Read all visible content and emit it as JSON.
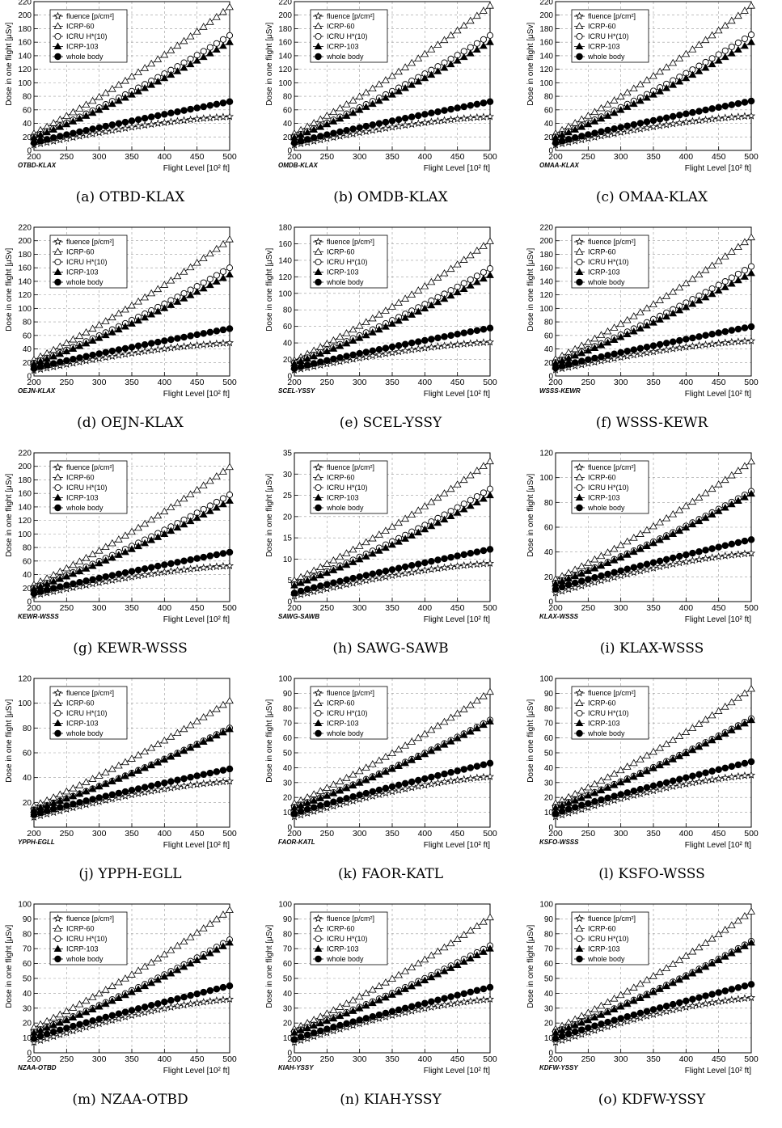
{
  "figure": {
    "ylabel": "Dose in one flight [μSv]",
    "xlabel": "Flight Level [10² ft]",
    "legend": [
      "fluence [p/cm²]",
      "ICRP-60",
      "ICRU H*(10)",
      "ICRP-103",
      "whole body"
    ],
    "colors": {
      "line": "#000000",
      "grid": "#9a9a9a"
    }
  },
  "chart_data": [
    {
      "type": "line",
      "caption": "(a) OTBD-KLAX",
      "route": "OTBD-KLAX",
      "xlim": [
        200,
        500
      ],
      "ylim": [
        0,
        220
      ],
      "yticks": [
        0,
        20,
        40,
        60,
        80,
        100,
        120,
        140,
        160,
        180,
        200,
        220
      ],
      "x": [
        200,
        500
      ],
      "series": [
        {
          "name": "fluence [p/cm²]",
          "values": [
            8,
            50
          ]
        },
        {
          "name": "ICRP-60",
          "values": [
            25,
            212
          ]
        },
        {
          "name": "ICRU H*(10)",
          "values": [
            20,
            170
          ]
        },
        {
          "name": "ICRP-103",
          "values": [
            19,
            160
          ]
        },
        {
          "name": "whole body",
          "values": [
            11,
            72
          ]
        }
      ]
    },
    {
      "type": "line",
      "caption": "(b) OMDB-KLAX",
      "route": "OMDB-KLAX",
      "xlim": [
        200,
        500
      ],
      "ylim": [
        0,
        220
      ],
      "yticks": [
        0,
        20,
        40,
        60,
        80,
        100,
        120,
        140,
        160,
        180,
        200,
        220
      ],
      "x": [
        200,
        500
      ],
      "series": [
        {
          "name": "fluence [p/cm²]",
          "values": [
            8,
            50
          ]
        },
        {
          "name": "ICRP-60",
          "values": [
            25,
            214
          ]
        },
        {
          "name": "ICRU H*(10)",
          "values": [
            20,
            170
          ]
        },
        {
          "name": "ICRP-103",
          "values": [
            19,
            160
          ]
        },
        {
          "name": "whole body",
          "values": [
            11,
            72
          ]
        }
      ]
    },
    {
      "type": "line",
      "caption": "(c) OMAA-KLAX",
      "route": "OMAA-KLAX",
      "xlim": [
        200,
        500
      ],
      "ylim": [
        0,
        220
      ],
      "yticks": [
        0,
        20,
        40,
        60,
        80,
        100,
        120,
        140,
        160,
        180,
        200,
        220
      ],
      "x": [
        200,
        500
      ],
      "series": [
        {
          "name": "fluence [p/cm²]",
          "values": [
            8,
            51
          ]
        },
        {
          "name": "ICRP-60",
          "values": [
            25,
            214
          ]
        },
        {
          "name": "ICRU H*(10)",
          "values": [
            20,
            171
          ]
        },
        {
          "name": "ICRP-103",
          "values": [
            19,
            160
          ]
        },
        {
          "name": "whole body",
          "values": [
            11,
            73
          ]
        }
      ]
    },
    {
      "type": "line",
      "caption": "(d) OEJN-KLAX",
      "route": "OEJN-KLAX",
      "xlim": [
        200,
        500
      ],
      "ylim": [
        0,
        220
      ],
      "yticks": [
        0,
        20,
        40,
        60,
        80,
        100,
        120,
        140,
        160,
        180,
        200,
        220
      ],
      "x": [
        200,
        500
      ],
      "series": [
        {
          "name": "fluence [p/cm²]",
          "values": [
            8,
            49
          ]
        },
        {
          "name": "ICRP-60",
          "values": [
            24,
            202
          ]
        },
        {
          "name": "ICRU H*(10)",
          "values": [
            19,
            160
          ]
        },
        {
          "name": "ICRP-103",
          "values": [
            18,
            150
          ]
        },
        {
          "name": "whole body",
          "values": [
            11,
            70
          ]
        }
      ]
    },
    {
      "type": "line",
      "caption": "(e) SCEL-YSSY",
      "route": "SCEL-YSSY",
      "xlim": [
        200,
        500
      ],
      "ylim": [
        0,
        180
      ],
      "yticks": [
        0,
        20,
        40,
        60,
        80,
        100,
        120,
        140,
        160,
        180
      ],
      "x": [
        200,
        500
      ],
      "series": [
        {
          "name": "fluence [p/cm²]",
          "values": [
            7,
            41
          ]
        },
        {
          "name": "ICRP-60",
          "values": [
            19,
            163
          ]
        },
        {
          "name": "ICRU H*(10)",
          "values": [
            16,
            130
          ]
        },
        {
          "name": "ICRP-103",
          "values": [
            15,
            122
          ]
        },
        {
          "name": "whole body",
          "values": [
            9,
            58
          ]
        }
      ]
    },
    {
      "type": "line",
      "caption": "(f) WSSS-KEWR",
      "route": "WSSS-KEWR",
      "xlim": [
        200,
        500
      ],
      "ylim": [
        0,
        220
      ],
      "yticks": [
        0,
        20,
        40,
        60,
        80,
        100,
        120,
        140,
        160,
        180,
        200,
        220
      ],
      "x": [
        200,
        500
      ],
      "series": [
        {
          "name": "fluence [p/cm²]",
          "values": [
            9,
            52
          ]
        },
        {
          "name": "ICRP-60",
          "values": [
            25,
            205
          ]
        },
        {
          "name": "ICRU H*(10)",
          "values": [
            20,
            162
          ]
        },
        {
          "name": "ICRP-103",
          "values": [
            19,
            152
          ]
        },
        {
          "name": "whole body",
          "values": [
            12,
            73
          ]
        }
      ]
    },
    {
      "type": "line",
      "caption": "(g) KEWR-WSSS",
      "route": "KEWR-WSSS",
      "xlim": [
        200,
        500
      ],
      "ylim": [
        0,
        220
      ],
      "yticks": [
        0,
        20,
        40,
        60,
        80,
        100,
        120,
        140,
        160,
        180,
        200,
        220
      ],
      "x": [
        200,
        500
      ],
      "series": [
        {
          "name": "fluence [p/cm²]",
          "values": [
            9,
            53
          ]
        },
        {
          "name": "ICRP-60",
          "values": [
            25,
            199
          ]
        },
        {
          "name": "ICRU H*(10)",
          "values": [
            20,
            158
          ]
        },
        {
          "name": "ICRP-103",
          "values": [
            19,
            149
          ]
        },
        {
          "name": "whole body",
          "values": [
            12,
            73
          ]
        }
      ]
    },
    {
      "type": "line",
      "caption": "(h) SAWG-SAWB",
      "route": "SAWG-SAWB",
      "xlim": [
        200,
        500
      ],
      "ylim": [
        0,
        35
      ],
      "yticks": [
        0,
        5,
        10,
        15,
        20,
        25,
        30,
        35
      ],
      "x": [
        200,
        500
      ],
      "series": [
        {
          "name": "fluence [p/cm²]",
          "values": [
            1.3,
            9
          ]
        },
        {
          "name": "ICRP-60",
          "values": [
            5,
            33
          ]
        },
        {
          "name": "ICRU H*(10)",
          "values": [
            4,
            26.5
          ]
        },
        {
          "name": "ICRP-103",
          "values": [
            3.8,
            25
          ]
        },
        {
          "name": "whole body",
          "values": [
            2,
            12.3
          ]
        }
      ]
    },
    {
      "type": "line",
      "caption": "(i) KLAX-WSSS",
      "route": "KLAX-WSSS",
      "xlim": [
        200,
        500
      ],
      "ylim": [
        0,
        120
      ],
      "yticks": [
        0,
        20,
        40,
        60,
        80,
        100,
        120
      ],
      "x": [
        200,
        500
      ],
      "series": [
        {
          "name": "fluence [p/cm²]",
          "values": [
            7,
            39
          ]
        },
        {
          "name": "ICRP-60",
          "values": [
            18,
            113
          ]
        },
        {
          "name": "ICRU H*(10)",
          "values": [
            15,
            89
          ]
        },
        {
          "name": "ICRP-103",
          "values": [
            14.5,
            87
          ]
        },
        {
          "name": "whole body",
          "values": [
            10,
            50
          ]
        }
      ]
    },
    {
      "type": "line",
      "caption": "(j) YPPH-EGLL",
      "route": "YPPH-EGLL",
      "xlim": [
        200,
        500
      ],
      "ylim": [
        0,
        120
      ],
      "yticks": [
        20,
        40,
        60,
        80,
        100,
        120
      ],
      "x": [
        200,
        500
      ],
      "series": [
        {
          "name": "fluence [p/cm²]",
          "values": [
            8,
            37
          ]
        },
        {
          "name": "ICRP-60",
          "values": [
            17,
            102
          ]
        },
        {
          "name": "ICRU H*(10)",
          "values": [
            14,
            80
          ]
        },
        {
          "name": "ICRP-103",
          "values": [
            14,
            79
          ]
        },
        {
          "name": "whole body",
          "values": [
            10,
            47
          ]
        }
      ]
    },
    {
      "type": "line",
      "caption": "(k) FAOR-KATL",
      "route": "FAOR-KATL",
      "xlim": [
        200,
        500
      ],
      "ylim": [
        0,
        100
      ],
      "yticks": [
        0,
        10,
        20,
        30,
        40,
        50,
        60,
        70,
        80,
        90,
        100
      ],
      "x": [
        200,
        500
      ],
      "series": [
        {
          "name": "fluence [p/cm²]",
          "values": [
            7,
            34
          ]
        },
        {
          "name": "ICRP-60",
          "values": [
            16,
            91
          ]
        },
        {
          "name": "ICRU H*(10)",
          "values": [
            13.5,
            72
          ]
        },
        {
          "name": "ICRP-103",
          "values": [
            13,
            71
          ]
        },
        {
          "name": "whole body",
          "values": [
            9,
            43
          ]
        }
      ]
    },
    {
      "type": "line",
      "caption": "(l) KSFO-WSSS",
      "route": "KSFO-WSSS",
      "xlim": [
        200,
        500
      ],
      "ylim": [
        0,
        100
      ],
      "yticks": [
        0,
        10,
        20,
        30,
        40,
        50,
        60,
        70,
        80,
        90,
        100
      ],
      "x": [
        200,
        500
      ],
      "series": [
        {
          "name": "fluence [p/cm²]",
          "values": [
            7,
            35
          ]
        },
        {
          "name": "ICRP-60",
          "values": [
            16,
            93
          ]
        },
        {
          "name": "ICRU H*(10)",
          "values": [
            13.5,
            73
          ]
        },
        {
          "name": "ICRP-103",
          "values": [
            13,
            72
          ]
        },
        {
          "name": "whole body",
          "values": [
            9,
            44
          ]
        }
      ]
    },
    {
      "type": "line",
      "caption": "(m) NZAA-OTBD",
      "route": "NZAA-OTBD",
      "xlim": [
        200,
        500
      ],
      "ylim": [
        0,
        100
      ],
      "yticks": [
        0,
        10,
        20,
        30,
        40,
        50,
        60,
        70,
        80,
        90,
        100
      ],
      "x": [
        200,
        500
      ],
      "series": [
        {
          "name": "fluence [p/cm²]",
          "values": [
            7,
            36
          ]
        },
        {
          "name": "ICRP-60",
          "values": [
            17,
            96
          ]
        },
        {
          "name": "ICRU H*(10)",
          "values": [
            14,
            76
          ]
        },
        {
          "name": "ICRP-103",
          "values": [
            13.5,
            74
          ]
        },
        {
          "name": "whole body",
          "values": [
            9.5,
            45
          ]
        }
      ]
    },
    {
      "type": "line",
      "caption": "(n) KIAH-YSSY",
      "route": "KIAH-YSSY",
      "xlim": [
        200,
        500
      ],
      "ylim": [
        0,
        100
      ],
      "yticks": [
        0,
        10,
        20,
        30,
        40,
        50,
        60,
        70,
        80,
        90,
        100
      ],
      "x": [
        200,
        500
      ],
      "series": [
        {
          "name": "fluence [p/cm²]",
          "values": [
            7,
            36
          ]
        },
        {
          "name": "ICRP-60",
          "values": [
            16,
            91
          ]
        },
        {
          "name": "ICRU H*(10)",
          "values": [
            14,
            72
          ]
        },
        {
          "name": "ICRP-103",
          "values": [
            13.5,
            70
          ]
        },
        {
          "name": "whole body",
          "values": [
            9,
            44
          ]
        }
      ]
    },
    {
      "type": "line",
      "caption": "(o) KDFW-YSSY",
      "route": "KDFW-YSSY",
      "xlim": [
        200,
        500
      ],
      "ylim": [
        0,
        100
      ],
      "yticks": [
        0,
        10,
        20,
        30,
        40,
        50,
        60,
        70,
        80,
        90,
        100
      ],
      "x": [
        200,
        500
      ],
      "series": [
        {
          "name": "fluence [p/cm²]",
          "values": [
            7,
            37
          ]
        },
        {
          "name": "ICRP-60",
          "values": [
            16,
            95
          ]
        },
        {
          "name": "ICRU H*(10)",
          "values": [
            14,
            75
          ]
        },
        {
          "name": "ICRP-103",
          "values": [
            13.5,
            74
          ]
        },
        {
          "name": "whole body",
          "values": [
            9.5,
            46
          ]
        }
      ]
    }
  ]
}
